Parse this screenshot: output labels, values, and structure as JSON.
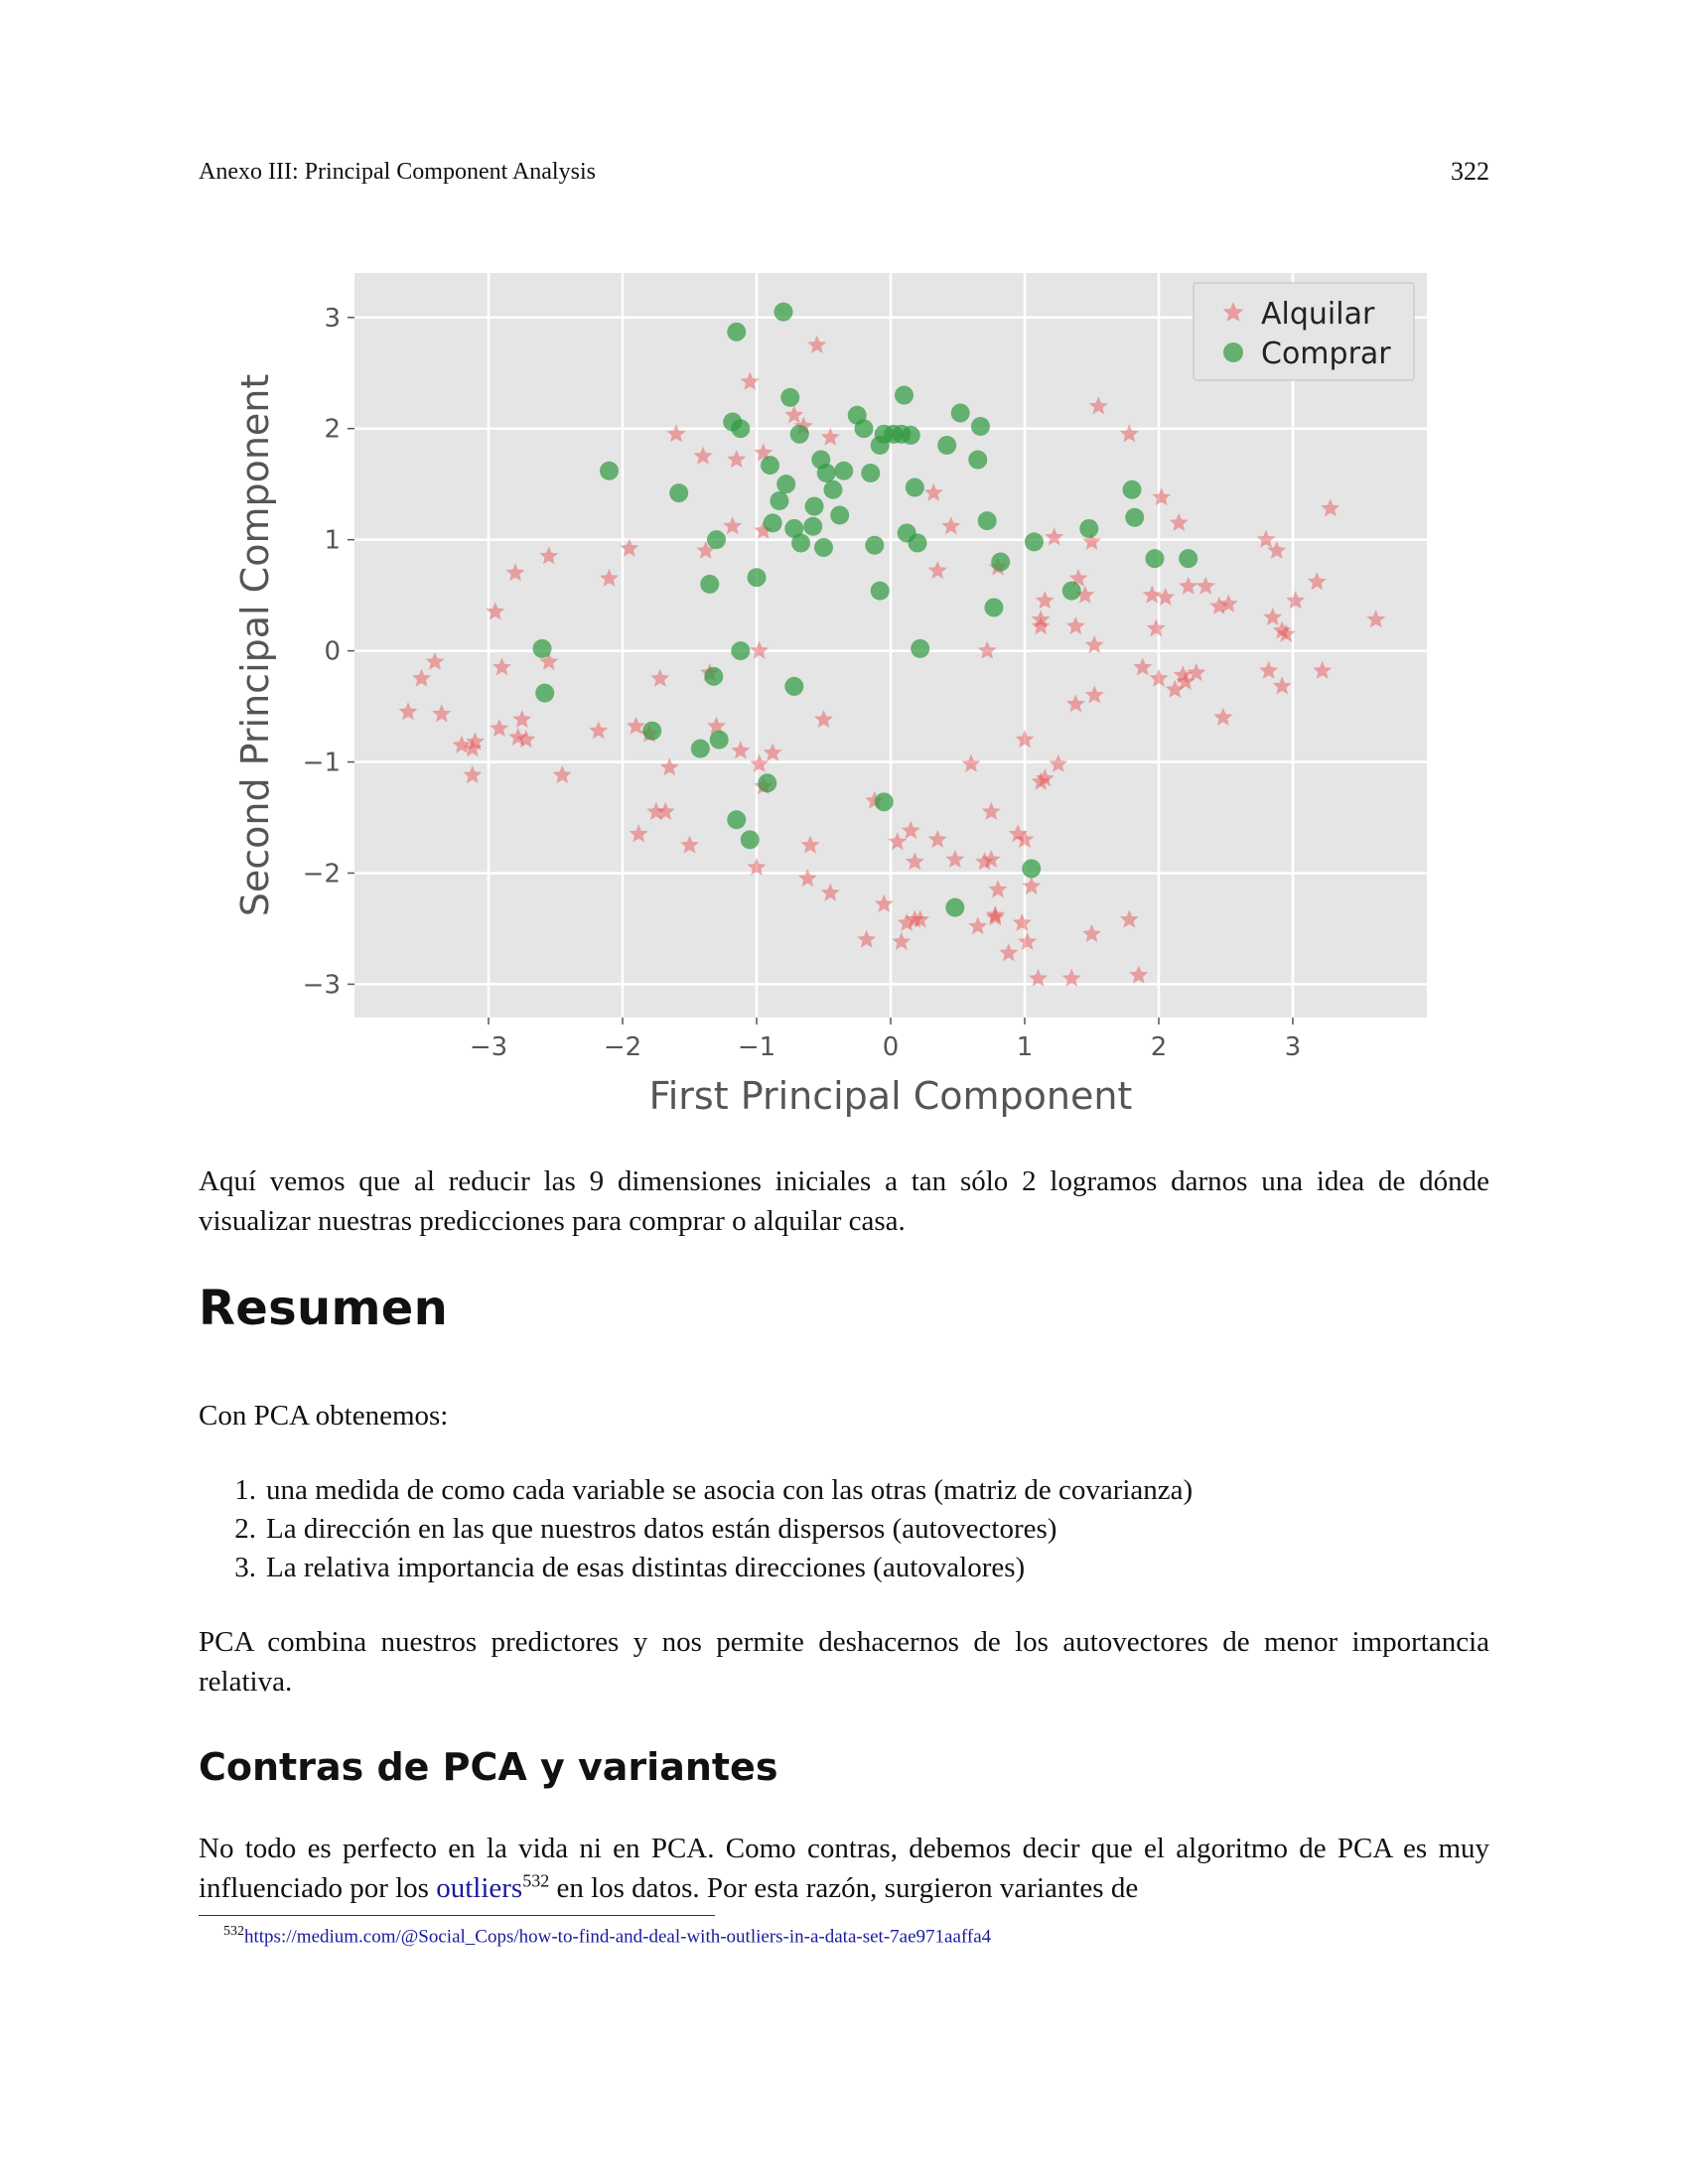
{
  "header": {
    "section": "Anexo III: Principal Component Analysis",
    "page_number": "322"
  },
  "chart_data": {
    "type": "scatter",
    "xlabel": "First Principal Component",
    "ylabel": "Second Principal Component",
    "xlim": [
      -4,
      4
    ],
    "ylim": [
      -3.3,
      3.4
    ],
    "xticks": [
      -3,
      -2,
      -1,
      0,
      1,
      2,
      3
    ],
    "yticks": [
      -3,
      -2,
      -1,
      0,
      1,
      2,
      3
    ],
    "xtick_labels": [
      "−3",
      "−2",
      "−1",
      "0",
      "1",
      "2",
      "3"
    ],
    "ytick_labels": [
      "−3",
      "−2",
      "−1",
      "0",
      "1",
      "2",
      "3"
    ],
    "grid": true,
    "legend_position": "top-right",
    "series": [
      {
        "name": "Alquilar",
        "color": "#e8474a",
        "marker": "star",
        "points": [
          [
            -3.6,
            -0.55
          ],
          [
            -3.5,
            -0.25
          ],
          [
            -3.4,
            -0.1
          ],
          [
            -3.35,
            -0.57
          ],
          [
            -3.2,
            -0.85
          ],
          [
            -3.12,
            -0.88
          ],
          [
            -3.1,
            -0.82
          ],
          [
            -3.12,
            -1.12
          ],
          [
            -2.95,
            0.35
          ],
          [
            -2.92,
            -0.7
          ],
          [
            -2.9,
            -0.15
          ],
          [
            -2.8,
            0.7
          ],
          [
            -2.78,
            -0.78
          ],
          [
            -2.75,
            -0.62
          ],
          [
            -2.72,
            -0.8
          ],
          [
            -2.55,
            0.85
          ],
          [
            -2.55,
            -0.1
          ],
          [
            -2.45,
            -1.12
          ],
          [
            -2.18,
            -0.72
          ],
          [
            -2.1,
            0.65
          ],
          [
            -1.95,
            0.92
          ],
          [
            -1.9,
            -0.68
          ],
          [
            -1.88,
            -1.65
          ],
          [
            -1.8,
            -0.75
          ],
          [
            -1.75,
            -1.45
          ],
          [
            -1.72,
            -0.25
          ],
          [
            -1.68,
            -1.45
          ],
          [
            -1.65,
            -1.05
          ],
          [
            -1.6,
            1.95
          ],
          [
            -1.5,
            -1.75
          ],
          [
            -1.4,
            1.75
          ],
          [
            -1.38,
            0.9
          ],
          [
            -1.35,
            -0.2
          ],
          [
            -1.3,
            -0.68
          ],
          [
            -1.18,
            1.12
          ],
          [
            -1.15,
            1.72
          ],
          [
            -1.12,
            -0.9
          ],
          [
            -1.05,
            2.42
          ],
          [
            -1.0,
            -1.95
          ],
          [
            -0.98,
            0.0
          ],
          [
            -0.98,
            -1.02
          ],
          [
            -0.95,
            1.78
          ],
          [
            -0.95,
            1.08
          ],
          [
            -0.95,
            -1.22
          ],
          [
            -0.88,
            -0.92
          ],
          [
            -0.72,
            2.12
          ],
          [
            -0.65,
            2.02
          ],
          [
            -0.62,
            -2.05
          ],
          [
            -0.6,
            -1.75
          ],
          [
            -0.55,
            2.75
          ],
          [
            -0.5,
            -0.62
          ],
          [
            -0.45,
            1.92
          ],
          [
            -0.45,
            -2.18
          ],
          [
            -0.18,
            -2.6
          ],
          [
            -0.12,
            -1.35
          ],
          [
            -0.05,
            -2.28
          ],
          [
            0.05,
            -1.72
          ],
          [
            0.08,
            -2.62
          ],
          [
            0.12,
            -2.45
          ],
          [
            0.15,
            -1.62
          ],
          [
            0.18,
            -2.42
          ],
          [
            0.18,
            -1.9
          ],
          [
            0.22,
            -2.42
          ],
          [
            0.32,
            1.42
          ],
          [
            0.35,
            0.72
          ],
          [
            0.35,
            -1.7
          ],
          [
            0.45,
            1.12
          ],
          [
            0.48,
            -1.88
          ],
          [
            0.6,
            -1.02
          ],
          [
            0.65,
            -2.48
          ],
          [
            0.7,
            -1.9
          ],
          [
            0.72,
            0.0
          ],
          [
            0.75,
            -1.45
          ],
          [
            0.75,
            -1.88
          ],
          [
            0.78,
            -2.38
          ],
          [
            0.78,
            -2.4
          ],
          [
            0.8,
            -2.15
          ],
          [
            0.8,
            0.75
          ],
          [
            0.88,
            -2.72
          ],
          [
            0.95,
            -1.65
          ],
          [
            0.98,
            -2.45
          ],
          [
            1.0,
            -0.8
          ],
          [
            1.0,
            -1.7
          ],
          [
            1.02,
            -2.62
          ],
          [
            1.05,
            -2.12
          ],
          [
            1.1,
            -2.95
          ],
          [
            1.12,
            0.22
          ],
          [
            1.12,
            0.28
          ],
          [
            1.12,
            -1.18
          ],
          [
            1.15,
            0.45
          ],
          [
            1.15,
            -1.15
          ],
          [
            1.22,
            1.02
          ],
          [
            1.25,
            -1.02
          ],
          [
            1.35,
            -2.95
          ],
          [
            1.38,
            0.22
          ],
          [
            1.38,
            -0.48
          ],
          [
            1.4,
            0.65
          ],
          [
            1.45,
            0.5
          ],
          [
            1.5,
            0.98
          ],
          [
            1.5,
            -2.55
          ],
          [
            1.52,
            -0.4
          ],
          [
            1.52,
            0.05
          ],
          [
            1.55,
            2.2
          ],
          [
            1.78,
            1.95
          ],
          [
            1.78,
            -2.42
          ],
          [
            1.85,
            -2.92
          ],
          [
            1.88,
            -0.15
          ],
          [
            1.95,
            0.5
          ],
          [
            1.98,
            0.2
          ],
          [
            2.0,
            -0.25
          ],
          [
            2.02,
            1.38
          ],
          [
            2.05,
            0.48
          ],
          [
            2.12,
            -0.35
          ],
          [
            2.15,
            1.15
          ],
          [
            2.18,
            -0.22
          ],
          [
            2.2,
            -0.28
          ],
          [
            2.22,
            0.58
          ],
          [
            2.28,
            -0.2
          ],
          [
            2.35,
            0.58
          ],
          [
            2.45,
            0.4
          ],
          [
            2.48,
            -0.6
          ],
          [
            2.52,
            0.42
          ],
          [
            2.8,
            1.0
          ],
          [
            2.82,
            -0.18
          ],
          [
            2.85,
            0.3
          ],
          [
            2.88,
            0.9
          ],
          [
            2.92,
            0.18
          ],
          [
            2.92,
            -0.32
          ],
          [
            2.95,
            0.15
          ],
          [
            3.02,
            0.45
          ],
          [
            3.18,
            0.62
          ],
          [
            3.22,
            -0.18
          ],
          [
            3.28,
            1.28
          ],
          [
            3.62,
            0.28
          ]
        ]
      },
      {
        "name": "Comprar",
        "color": "#2e9a3e",
        "marker": "circle",
        "points": [
          [
            -2.6,
            0.02
          ],
          [
            -2.58,
            -0.38
          ],
          [
            -2.1,
            1.62
          ],
          [
            -1.78,
            -0.72
          ],
          [
            -1.58,
            1.42
          ],
          [
            -1.42,
            -0.88
          ],
          [
            -1.35,
            0.6
          ],
          [
            -1.32,
            -0.23
          ],
          [
            -1.3,
            1.0
          ],
          [
            -1.28,
            -0.8
          ],
          [
            -1.18,
            2.06
          ],
          [
            -1.15,
            2.87
          ],
          [
            -1.15,
            -1.52
          ],
          [
            -1.12,
            2.0
          ],
          [
            -1.12,
            0.0
          ],
          [
            -1.05,
            -1.7
          ],
          [
            -1.0,
            0.66
          ],
          [
            -0.92,
            -1.19
          ],
          [
            -0.9,
            1.67
          ],
          [
            -0.88,
            1.15
          ],
          [
            -0.83,
            1.35
          ],
          [
            -0.8,
            3.05
          ],
          [
            -0.78,
            1.5
          ],
          [
            -0.75,
            2.28
          ],
          [
            -0.72,
            1.1
          ],
          [
            -0.72,
            -0.32
          ],
          [
            -0.68,
            1.95
          ],
          [
            -0.67,
            0.97
          ],
          [
            -0.58,
            1.12
          ],
          [
            -0.57,
            1.3
          ],
          [
            -0.52,
            1.72
          ],
          [
            -0.5,
            0.93
          ],
          [
            -0.48,
            1.6
          ],
          [
            -0.43,
            1.45
          ],
          [
            -0.38,
            1.22
          ],
          [
            -0.35,
            1.62
          ],
          [
            -0.25,
            2.12
          ],
          [
            -0.2,
            2.0
          ],
          [
            -0.15,
            1.6
          ],
          [
            -0.12,
            0.95
          ],
          [
            -0.08,
            1.85
          ],
          [
            -0.08,
            0.54
          ],
          [
            -0.05,
            -1.36
          ],
          [
            -0.05,
            1.95
          ],
          [
            0.02,
            1.95
          ],
          [
            0.08,
            1.95
          ],
          [
            0.1,
            2.3
          ],
          [
            0.12,
            1.06
          ],
          [
            0.15,
            1.94
          ],
          [
            0.18,
            1.47
          ],
          [
            0.2,
            0.97
          ],
          [
            0.22,
            0.02
          ],
          [
            0.42,
            1.85
          ],
          [
            0.48,
            -2.31
          ],
          [
            0.52,
            2.14
          ],
          [
            0.65,
            1.72
          ],
          [
            0.67,
            2.02
          ],
          [
            0.72,
            1.17
          ],
          [
            0.77,
            0.39
          ],
          [
            0.82,
            0.8
          ],
          [
            1.05,
            -1.96
          ],
          [
            1.07,
            0.98
          ],
          [
            1.35,
            0.54
          ],
          [
            1.48,
            1.1
          ],
          [
            1.8,
            1.45
          ],
          [
            1.82,
            1.2
          ],
          [
            1.97,
            0.83
          ],
          [
            2.22,
            0.83
          ]
        ]
      }
    ]
  },
  "body": {
    "intro_paragraph": "Aquí vemos que al reducir las 9 dimensiones iniciales a tan sólo 2 logramos darnos una idea de dónde visualizar nuestras predicciones para comprar o alquilar casa.",
    "resumen_heading": "Resumen",
    "con_pca": "Con PCA obtenemos:",
    "list_items": [
      {
        "num": "1.",
        "text": "una medida de como cada variable se asocia con las otras (matriz de covarianza)"
      },
      {
        "num": "2.",
        "text": "La dirección en las que nuestros datos están dispersos (autovectores)"
      },
      {
        "num": "3.",
        "text": "La relativa importancia de esas distintas direcciones (autovalores)"
      }
    ],
    "pca_combina": "PCA combina nuestros predictores y nos permite deshacernos de los autovectores de menor importancia relativa.",
    "contras_heading": "Contras de PCA y variantes",
    "contras_text_before": "No todo es perfecto en la vida ni en PCA. Como contras, debemos decir que el algoritmo de PCA es muy influenciado por los ",
    "contras_link": "outliers",
    "contras_footnote_ref": "532",
    "contras_text_after": " en los datos. Por esta razón, surgieron variantes de"
  },
  "footnote": {
    "number": "532",
    "url": "https://medium.com/@Social_Cops/how-to-find-and-deal-with-outliers-in-a-data-set-7ae971aaffa4"
  }
}
